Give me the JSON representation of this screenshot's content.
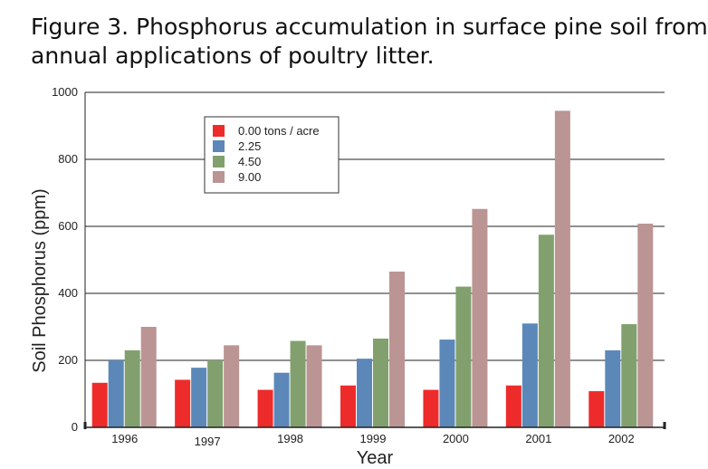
{
  "chart_data": {
    "type": "bar",
    "title_line1": "Figure 3. Phosphorus accumulation in surface pine soil from",
    "title_line2": "annual applications of poultry litter.",
    "xlabel": "Year",
    "ylabel": "Soil Phosphorus (ppm)",
    "ylim": [
      0,
      1000
    ],
    "yticks": [
      0,
      200,
      400,
      600,
      800,
      1000
    ],
    "grid": true,
    "legend_position": "top-left",
    "categories": [
      "1996",
      "1997",
      "1998",
      "1999",
      "2000",
      "2001",
      "2002"
    ],
    "series": [
      {
        "name": "0.00 tons / acre",
        "color": "#ee2b2b",
        "values": [
          133,
          142,
          112,
          125,
          112,
          125,
          108
        ]
      },
      {
        "name": "2.25",
        "color": "#5b88b8",
        "values": [
          200,
          178,
          163,
          205,
          262,
          310,
          230
        ]
      },
      {
        "name": "4.50",
        "color": "#82a06e",
        "values": [
          230,
          200,
          258,
          265,
          420,
          575,
          308
        ]
      },
      {
        "name": "9.00",
        "color": "#bb9494",
        "values": [
          300,
          245,
          245,
          465,
          652,
          945,
          608
        ]
      }
    ]
  }
}
